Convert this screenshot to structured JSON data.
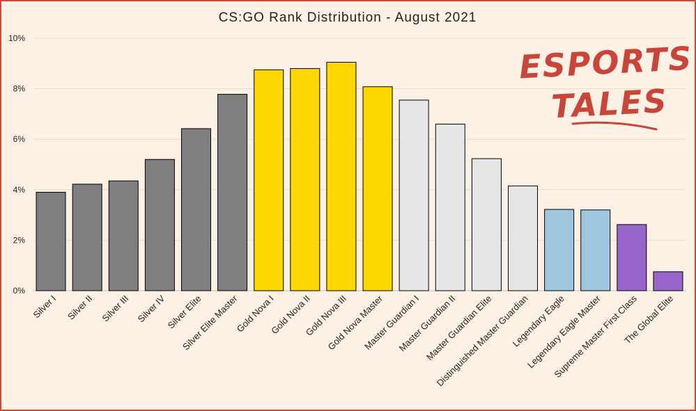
{
  "chart_data": {
    "type": "bar",
    "title": "CS:GO Rank Distribution  - August 2021",
    "xlabel": "",
    "ylabel": "",
    "ylim": [
      0,
      10
    ],
    "yticks": [
      0,
      2,
      4,
      6,
      8,
      10
    ],
    "ytick_labels": [
      "0%",
      "2%",
      "4%",
      "6%",
      "8%",
      "10%"
    ],
    "grid": true,
    "categories": [
      "Silver I",
      "Silver II",
      "Silver III",
      "Silver IV",
      "Silver Elite",
      "Silver Elite Master",
      "Gold Nova I",
      "Gold Nova II",
      "Gold Nova III",
      "Gold Nova Master",
      "Master Guardian I",
      "Master Guardian II",
      "Master Guardian Elite",
      "Distinguished Master Guardian",
      "Legendary Eagle",
      "Legendary Eagle Master",
      "Supreme Master First Class",
      "The Global Elite"
    ],
    "values": [
      3.9,
      4.22,
      4.35,
      5.2,
      6.42,
      7.78,
      8.75,
      8.8,
      9.05,
      8.08,
      7.55,
      6.6,
      5.23,
      4.15,
      3.22,
      3.2,
      2.62,
      0.75
    ],
    "colors": [
      "#7f7f7f",
      "#7f7f7f",
      "#7f7f7f",
      "#7f7f7f",
      "#7f7f7f",
      "#7f7f7f",
      "#ffd700",
      "#ffd700",
      "#ffd700",
      "#ffd700",
      "#e6e6e6",
      "#e6e6e6",
      "#e6e6e6",
      "#e6e6e6",
      "#9ec6df",
      "#9ec6df",
      "#9966cc",
      "#9966cc"
    ]
  },
  "logo": {
    "line1": "ESPORTS",
    "line2": "TALES",
    "color": "#c9453a"
  },
  "colors": {
    "background": "#fdf1e5",
    "border": "#d04a3a",
    "gridline": "#e8d9cc"
  }
}
